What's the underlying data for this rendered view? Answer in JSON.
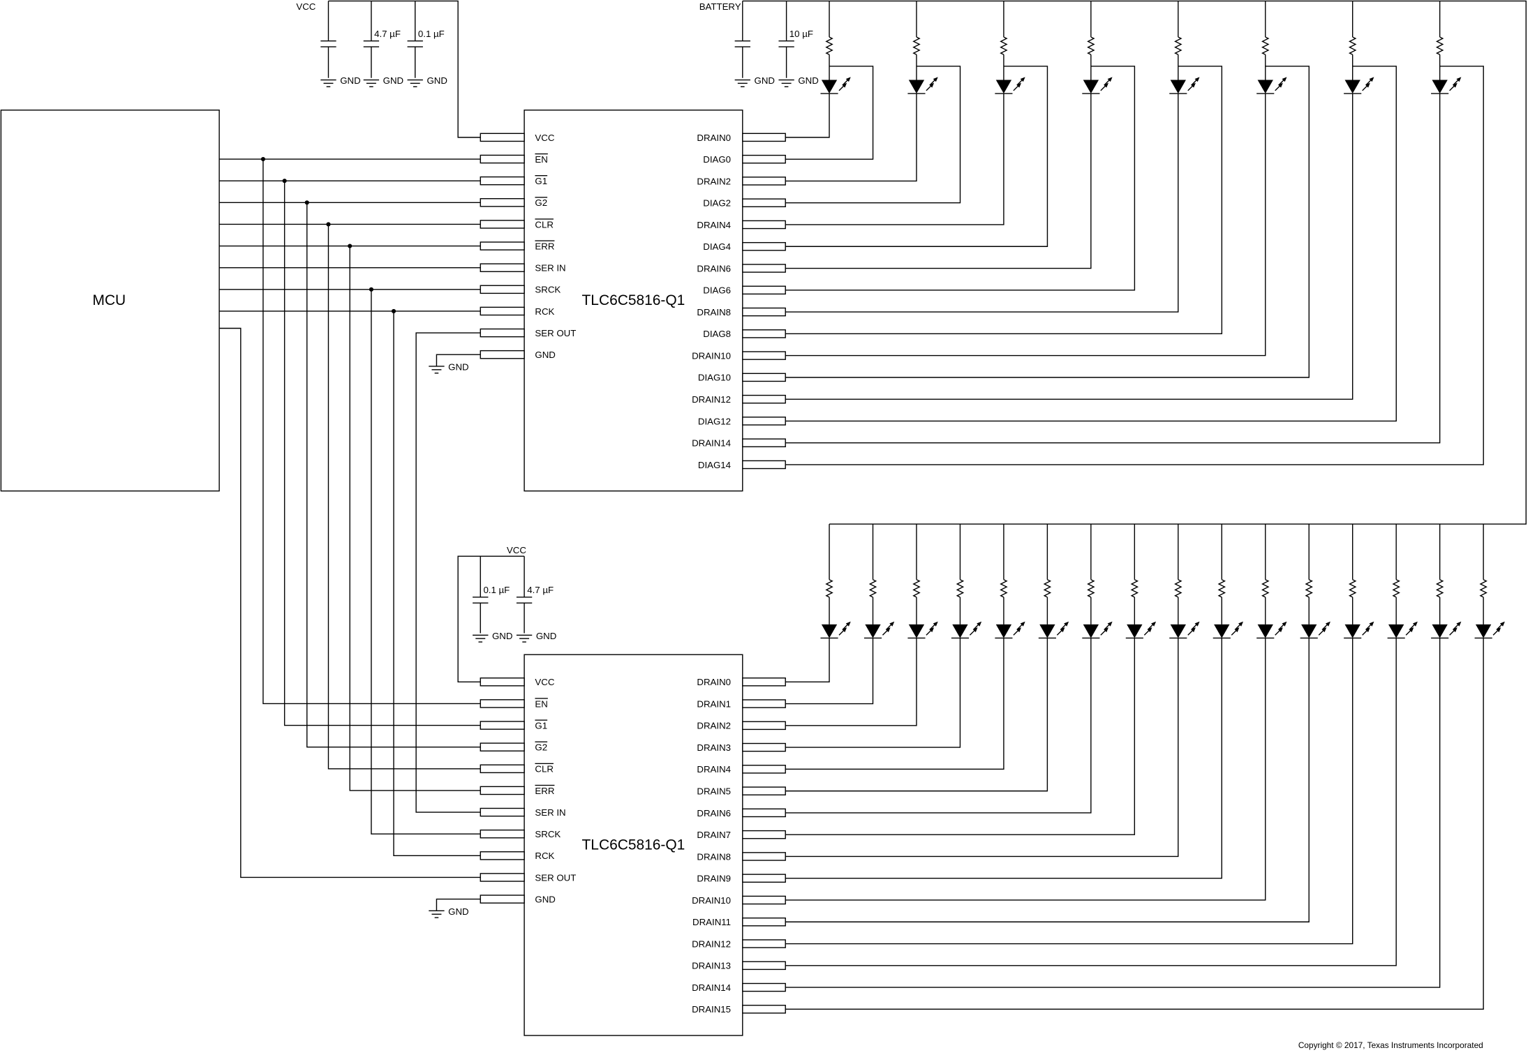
{
  "mcu": {
    "label": "MCU"
  },
  "chips": [
    {
      "name": "TLC6C5816-Q1",
      "left_pins": [
        {
          "label": "VCC",
          "overline": false
        },
        {
          "label": "EN",
          "overline": true
        },
        {
          "label": "G1",
          "overline": true
        },
        {
          "label": "G2",
          "overline": true
        },
        {
          "label": "CLR",
          "overline": true
        },
        {
          "label": "ERR",
          "overline": true
        },
        {
          "label": "SER IN",
          "overline": false
        },
        {
          "label": "SRCK",
          "overline": false
        },
        {
          "label": "RCK",
          "overline": false
        },
        {
          "label": "SER OUT",
          "overline": false
        },
        {
          "label": "GND",
          "overline": false
        }
      ],
      "right_pins": [
        "DRAIN0",
        "DIAG0",
        "DRAIN2",
        "DIAG2",
        "DRAIN4",
        "DIAG4",
        "DRAIN6",
        "DIAG6",
        "DRAIN8",
        "DIAG8",
        "DRAIN10",
        "DIAG10",
        "DRAIN12",
        "DIAG12",
        "DRAIN14",
        "DIAG14"
      ]
    },
    {
      "name": "TLC6C5816-Q1",
      "left_pins": [
        {
          "label": "VCC",
          "overline": false
        },
        {
          "label": "EN",
          "overline": true
        },
        {
          "label": "G1",
          "overline": true
        },
        {
          "label": "G2",
          "overline": true
        },
        {
          "label": "CLR",
          "overline": true
        },
        {
          "label": "ERR",
          "overline": true
        },
        {
          "label": "SER IN",
          "overline": false
        },
        {
          "label": "SRCK",
          "overline": false
        },
        {
          "label": "RCK",
          "overline": false
        },
        {
          "label": "SER OUT",
          "overline": false
        },
        {
          "label": "GND",
          "overline": false
        }
      ],
      "right_pins": [
        "DRAIN0",
        "DRAIN1",
        "DRAIN2",
        "DRAIN3",
        "DRAIN4",
        "DRAIN5",
        "DRAIN6",
        "DRAIN7",
        "DRAIN8",
        "DRAIN9",
        "DRAIN10",
        "DRAIN11",
        "DRAIN12",
        "DRAIN13",
        "DRAIN14",
        "DRAIN15"
      ]
    }
  ],
  "supplies": {
    "vcc": "VCC",
    "battery": "BATTERY",
    "gnd": "GND"
  },
  "capacitors": {
    "top_vcc": [
      "4.7 µF",
      "0.1 µF"
    ],
    "battery": "10 µF",
    "bottom_vcc": [
      "0.1 µF",
      "4.7 µF"
    ]
  },
  "copyright": "Copyright © 2017, Texas Instruments Incorporated"
}
